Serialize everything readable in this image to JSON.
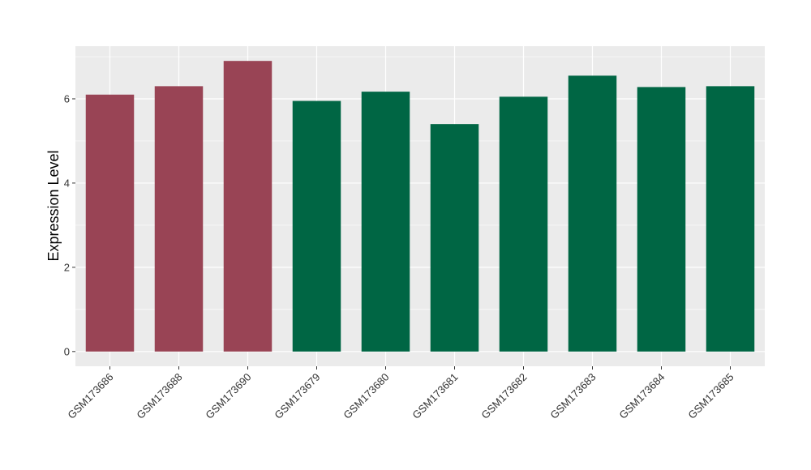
{
  "chart_data": {
    "type": "bar",
    "title": "",
    "xlabel": "",
    "ylabel": "Expression Level",
    "categories": [
      "GSM173686",
      "GSM173688",
      "GSM173690",
      "GSM173679",
      "GSM173680",
      "GSM173681",
      "GSM173682",
      "GSM173683",
      "GSM173684",
      "GSM173685"
    ],
    "values": [
      6.1,
      6.3,
      6.9,
      5.95,
      6.17,
      5.4,
      6.05,
      6.55,
      6.28,
      6.3
    ],
    "bar_colors": [
      "#994455",
      "#994455",
      "#994455",
      "#006644",
      "#006644",
      "#006644",
      "#006644",
      "#006644",
      "#006644",
      "#006644"
    ],
    "ylim": [
      -0.35,
      7.25
    ],
    "yticks": [
      0,
      2,
      4,
      6
    ],
    "ytick_labels": [
      "0",
      "2",
      "4",
      "6"
    ],
    "grid": true,
    "panel_background": "#EBEBEB",
    "grid_color": "#FFFFFF",
    "legend": "none"
  }
}
